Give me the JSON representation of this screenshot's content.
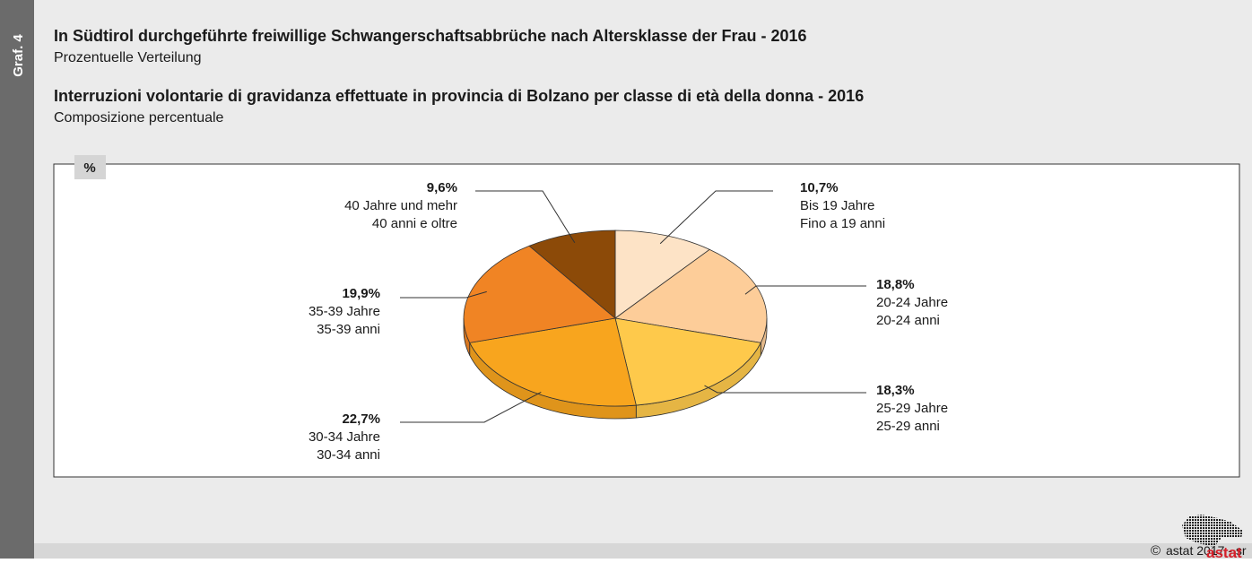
{
  "chart_data": {
    "type": "pie",
    "tab": "Graf. 4",
    "title": "In Südtirol durchgeführte freiwillige Schwangerschaftsabbrüche nach Altersklasse der Frau - 2016",
    "subtitle": "Prozentuelle Verteilung",
    "title_it": "Interruzioni volontarie di gravidanza effettuate in provincia di Bolzano per classe di età della donna - 2016",
    "subtitle_it": "Composizione percentuale",
    "unit": "%",
    "categories": [
      "Bis 19 Jahre",
      "20-24 Jahre",
      "25-29 Jahre",
      "30-34 Jahre",
      "35-39 Jahre",
      "40 Jahre und mehr"
    ],
    "categories_it": [
      "Fino a 19 anni",
      "20-24 anni",
      "25-29 anni",
      "30-34 anni",
      "35-39 anni",
      "40 anni e oltre"
    ],
    "values": [
      10.7,
      18.8,
      18.3,
      22.7,
      19.9,
      9.6
    ],
    "value_labels": [
      "10,7%",
      "18,8%",
      "18,3%",
      "22,7%",
      "19,9%",
      "9,6%"
    ],
    "colors": [
      "#fde3c6",
      "#fdcd99",
      "#fec94b",
      "#f8a51e",
      "#f08424",
      "#8c4a08"
    ],
    "copyright": "©",
    "source": "astat 2017 - sr",
    "logo": "astat"
  }
}
